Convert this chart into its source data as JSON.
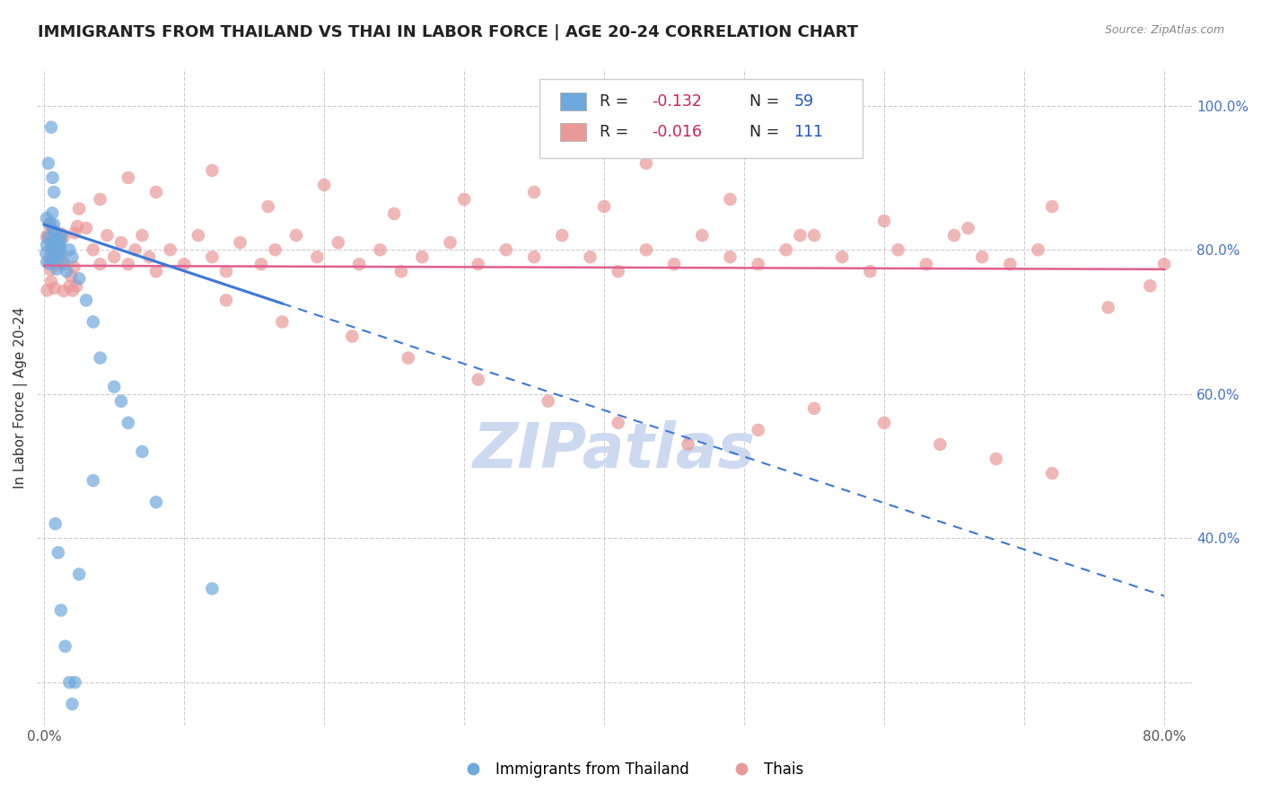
{
  "title": "IMMIGRANTS FROM THAILAND VS THAI IN LABOR FORCE | AGE 20-24 CORRELATION CHART",
  "source": "Source: ZipAtlas.com",
  "ylabel": "In Labor Force | Age 20-24",
  "xlim": [
    -0.005,
    0.82
  ],
  "ylim": [
    0.14,
    1.05
  ],
  "blue_R": -0.132,
  "blue_N": 59,
  "pink_R": -0.016,
  "pink_N": 111,
  "blue_color": "#6fa8dc",
  "pink_color": "#ea9999",
  "blue_line_color": "#3c78d8",
  "pink_line_color": "#e06090",
  "watermark": "ZIPatlas",
  "watermark_color": "#ccd9f0",
  "title_fontsize": 13,
  "label_fontsize": 11,
  "tick_fontsize": 11,
  "right_tick_color": "#4472c4"
}
